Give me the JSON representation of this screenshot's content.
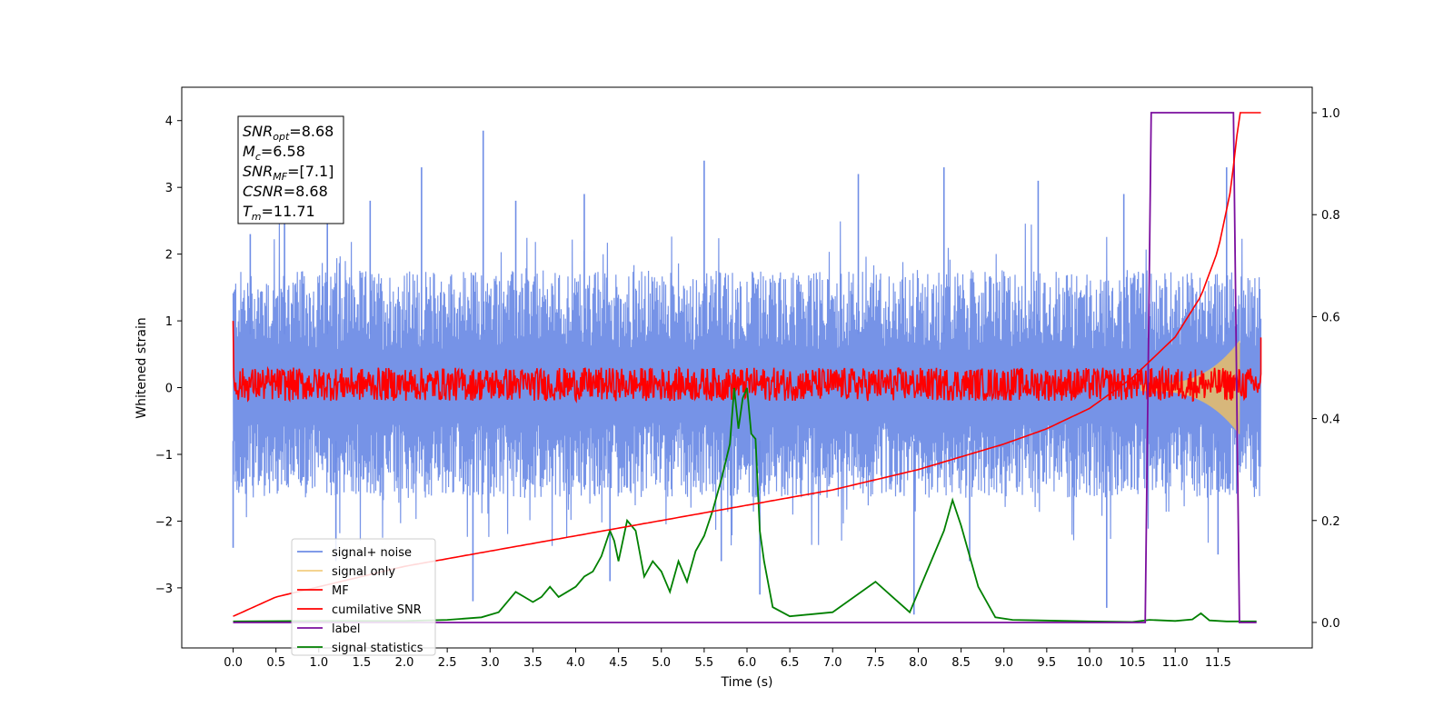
{
  "chart_data": {
    "type": "line",
    "title": "",
    "xlabel": "Time (s)",
    "ylabel": "Whitened strain",
    "y2label": "",
    "xlim": [
      -0.6,
      12.6
    ],
    "ylim": [
      -3.9,
      4.5
    ],
    "y2lim": [
      -0.05,
      1.05
    ],
    "x_ticks": [
      0.0,
      0.5,
      1.0,
      1.5,
      2.0,
      2.5,
      3.0,
      3.5,
      4.0,
      4.5,
      5.0,
      5.5,
      6.0,
      6.5,
      7.0,
      7.5,
      8.0,
      8.5,
      9.0,
      9.5,
      10.0,
      10.5,
      11.0,
      11.5
    ],
    "x_tick_labels": [
      "0.0",
      "0.5",
      "1.0",
      "1.5",
      "2.0",
      "2.5",
      "3.0",
      "3.5",
      "4.0",
      "4.5",
      "5.0",
      "5.5",
      "6.0",
      "6.5",
      "7.0",
      "7.5",
      "8.0",
      "8.5",
      "9.0",
      "9.5",
      "10.0",
      "10.5",
      "11.0",
      "11.5"
    ],
    "y_ticks": [
      -3,
      -2,
      -1,
      0,
      1,
      2,
      3,
      4
    ],
    "y_tick_labels": [
      "−3",
      "−2",
      "−1",
      "0",
      "1",
      "2",
      "3",
      "4"
    ],
    "y2_ticks": [
      0.0,
      0.2,
      0.4,
      0.6,
      0.8,
      1.0
    ],
    "y2_tick_labels": [
      "0.0",
      "0.2",
      "0.4",
      "0.6",
      "0.8",
      "1.0"
    ],
    "legend_position": "lower-left",
    "info_box": {
      "position": "top-left",
      "lines": [
        {
          "sym": "SNR",
          "sub": "opt",
          "value": "=8.68"
        },
        {
          "sym": "M",
          "sub": "c",
          "value": "=6.58"
        },
        {
          "sym": "SNR",
          "sub": "MF",
          "value": "=[7.1]"
        },
        {
          "sym": "CSNR",
          "sub": "",
          "value": "=8.68"
        },
        {
          "sym": "T",
          "sub": "m",
          "value": "=11.71"
        }
      ]
    },
    "series": [
      {
        "name": "signal+ noise",
        "color": "#6f8de6",
        "axis": "left",
        "kind": "noise-envelope",
        "x_range": [
          0.0,
          12.0
        ],
        "typical_upper": 1.6,
        "typical_lower": -1.5,
        "peaks": [
          [
            0.2,
            2.3
          ],
          [
            0.6,
            2.9
          ],
          [
            1.1,
            2.8
          ],
          [
            1.6,
            2.8
          ],
          [
            2.2,
            3.3
          ],
          [
            2.92,
            3.85
          ],
          [
            3.3,
            2.8
          ],
          [
            4.1,
            2.9
          ],
          [
            5.5,
            3.4
          ],
          [
            7.3,
            3.2
          ],
          [
            8.3,
            3.3
          ],
          [
            9.4,
            3.1
          ],
          [
            10.4,
            2.9
          ],
          [
            11.6,
            3.3
          ]
        ],
        "troughs": [
          [
            0.0,
            -2.4
          ],
          [
            1.2,
            -2.6
          ],
          [
            2.8,
            -3.2
          ],
          [
            4.4,
            -2.9
          ],
          [
            5.7,
            -2.6
          ],
          [
            6.15,
            -3.1
          ],
          [
            7.95,
            -3.4
          ],
          [
            8.6,
            -2.6
          ],
          [
            10.2,
            -3.3
          ],
          [
            11.5,
            -2.5
          ]
        ]
      },
      {
        "name": "signal only",
        "color": "#f0c060",
        "axis": "left",
        "kind": "chirp",
        "x_range": [
          10.6,
          11.75
        ],
        "amplitude_start": 0.05,
        "amplitude_end": 0.7
      },
      {
        "name": "MF",
        "color": "#ff0000",
        "axis": "left",
        "kind": "noise-band",
        "x_range": [
          0.0,
          12.0
        ],
        "band": [
          -0.2,
          0.3
        ],
        "spike": [
          0.0,
          1.0
        ],
        "end_value": 0.75
      },
      {
        "name": "cumilative SNR",
        "color": "#ff0000",
        "axis": "right",
        "x": [
          0.0,
          0.5,
          1.0,
          2.0,
          3.0,
          4.0,
          5.0,
          6.0,
          7.0,
          8.0,
          9.0,
          9.5,
          10.0,
          10.5,
          11.0,
          11.3,
          11.5,
          11.65,
          11.75,
          12.0
        ],
        "values": [
          0.012,
          0.05,
          0.07,
          0.11,
          0.14,
          0.17,
          0.2,
          0.23,
          0.26,
          0.3,
          0.35,
          0.38,
          0.42,
          0.48,
          0.56,
          0.64,
          0.73,
          0.85,
          1.0,
          1.0
        ]
      },
      {
        "name": "label",
        "color": "#7b0e9e",
        "axis": "right",
        "x": [
          0.0,
          10.65,
          10.72,
          11.68,
          11.75,
          11.95
        ],
        "values": [
          0.0,
          0.0,
          1.0,
          1.0,
          0.0,
          0.0
        ]
      },
      {
        "name": "signal statistics",
        "color": "#008000",
        "axis": "right",
        "x": [
          0.0,
          1.0,
          2.0,
          2.5,
          2.9,
          3.1,
          3.3,
          3.4,
          3.5,
          3.6,
          3.7,
          3.8,
          3.9,
          4.0,
          4.1,
          4.2,
          4.3,
          4.4,
          4.45,
          4.5,
          4.6,
          4.7,
          4.8,
          4.9,
          5.0,
          5.1,
          5.2,
          5.3,
          5.4,
          5.5,
          5.6,
          5.7,
          5.8,
          5.85,
          5.9,
          5.95,
          6.0,
          6.05,
          6.1,
          6.15,
          6.2,
          6.3,
          6.5,
          7.0,
          7.5,
          7.7,
          7.9,
          8.1,
          8.3,
          8.4,
          8.5,
          8.7,
          8.9,
          9.1,
          10.0,
          10.5,
          10.7,
          11.0,
          11.2,
          11.3,
          11.4,
          11.6,
          11.95
        ],
        "values": [
          0.002,
          0.003,
          0.003,
          0.005,
          0.01,
          0.02,
          0.06,
          0.05,
          0.04,
          0.05,
          0.07,
          0.05,
          0.06,
          0.07,
          0.09,
          0.1,
          0.13,
          0.18,
          0.16,
          0.12,
          0.2,
          0.18,
          0.09,
          0.12,
          0.1,
          0.06,
          0.12,
          0.08,
          0.14,
          0.17,
          0.22,
          0.28,
          0.35,
          0.46,
          0.38,
          0.44,
          0.46,
          0.37,
          0.36,
          0.18,
          0.12,
          0.03,
          0.012,
          0.02,
          0.08,
          0.05,
          0.02,
          0.1,
          0.18,
          0.24,
          0.19,
          0.07,
          0.01,
          0.005,
          0.002,
          0.001,
          0.005,
          0.003,
          0.006,
          0.018,
          0.004,
          0.002,
          0.002
        ]
      }
    ]
  }
}
